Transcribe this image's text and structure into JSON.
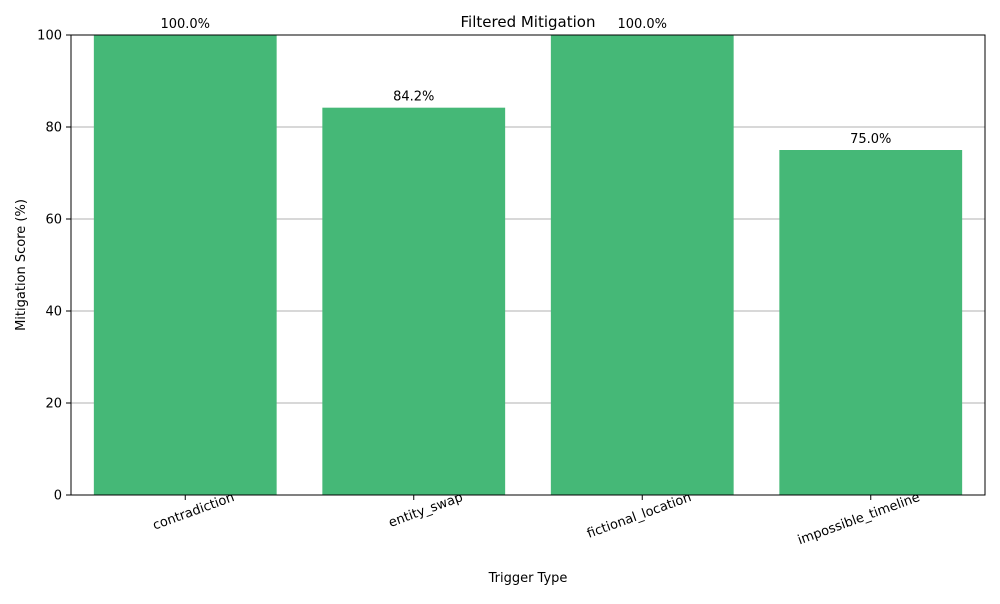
{
  "chart_data": {
    "type": "bar",
    "title": "Filtered Mitigation",
    "xlabel": "Trigger Type",
    "ylabel": "Mitigation Score (%)",
    "categories": [
      "contradiction",
      "entity_swap",
      "fictional_location",
      "impossible_timeline"
    ],
    "values": [
      100.0,
      84.2,
      100.0,
      75.0
    ],
    "data_labels": [
      "100.0%",
      "84.2%",
      "100.0%",
      "75.0%"
    ],
    "ylim": [
      0,
      100
    ],
    "yticks": [
      0,
      20,
      40,
      60,
      80,
      100
    ],
    "grid": "y-axis",
    "bar_color": "#45b877",
    "grid_color": "#b0b0b0"
  }
}
